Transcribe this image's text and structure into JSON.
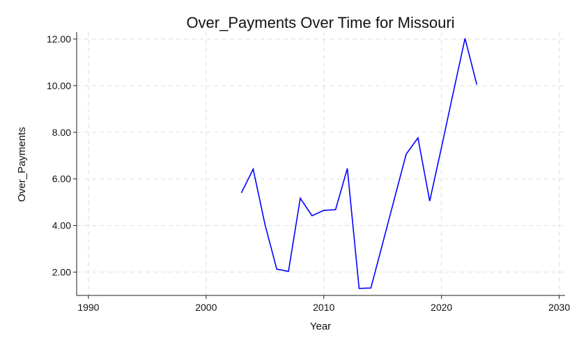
{
  "chart_data": {
    "type": "line",
    "title": "Over_Payments Over Time for Missouri",
    "xlabel": "Year",
    "ylabel": "Over_Payments",
    "xlim": [
      1989,
      2030.5
    ],
    "ylim": [
      1.0,
      12.3
    ],
    "x_ticks": [
      1990,
      2000,
      2010,
      2020,
      2030
    ],
    "y_ticks": [
      "2.00",
      "4.00",
      "6.00",
      "8.00",
      "10.00",
      "12.00"
    ],
    "grid": true,
    "line_color": "#0000ff",
    "grid_color": "#e8e8e8",
    "series": [
      {
        "x": [
          2003,
          2004,
          2005,
          2006,
          2007,
          2008,
          2009,
          2010,
          2011,
          2012,
          2013,
          2014,
          2015,
          2016,
          2017,
          2018,
          2019,
          2020,
          2021,
          2022,
          2023
        ],
        "values": [
          5.4,
          6.42,
          4.05,
          2.13,
          2.03,
          5.17,
          4.42,
          4.65,
          4.68,
          6.45,
          1.3,
          1.32,
          3.23,
          5.15,
          7.06,
          7.76,
          5.05,
          7.35,
          9.7,
          12.03,
          10.05
        ]
      }
    ]
  }
}
